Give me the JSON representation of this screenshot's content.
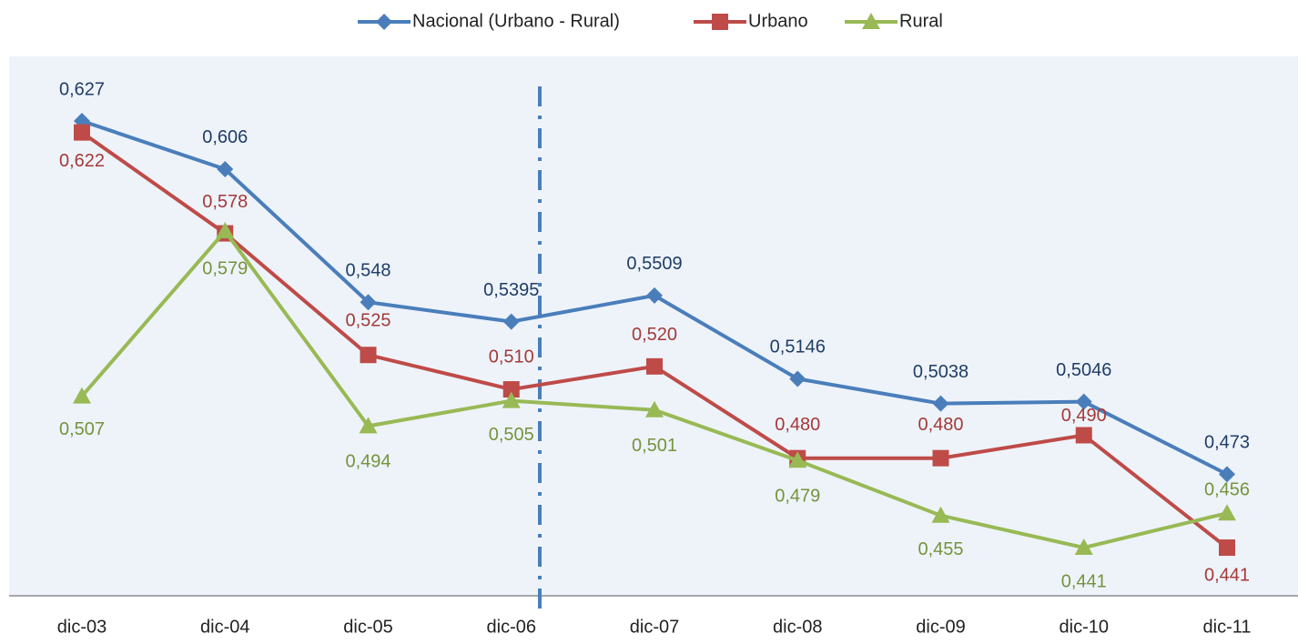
{
  "chart_data": {
    "type": "line",
    "categories": [
      "dic-03",
      "dic-04",
      "dic-05",
      "dic-06",
      "dic-07",
      "dic-08",
      "dic-09",
      "dic-10",
      "dic-11"
    ],
    "series": [
      {
        "name": "Nacional (Urbano - Rural)",
        "color": "#4a7ebb",
        "marker": "diamond",
        "values": [
          0.627,
          0.606,
          0.548,
          0.5395,
          0.5509,
          0.5146,
          0.5038,
          0.5046,
          0.473
        ],
        "value_labels": [
          "0,627",
          "0,606",
          "0,548",
          "0,5395",
          "0,5509",
          "0,5146",
          "0,5038",
          "0,5046",
          "0,473"
        ]
      },
      {
        "name": "Urbano",
        "color": "#be4b48",
        "marker": "square",
        "values": [
          0.622,
          0.578,
          0.525,
          0.51,
          0.52,
          0.48,
          0.48,
          0.49,
          0.441
        ],
        "value_labels": [
          "0,622",
          "0,578",
          "0,525",
          "0,510",
          "0,520",
          "0,480",
          "0,480",
          "0,490",
          "0,441"
        ]
      },
      {
        "name": "Rural",
        "color": "#98b954",
        "marker": "triangle",
        "values": [
          0.507,
          0.579,
          0.494,
          0.505,
          0.501,
          0.479,
          0.455,
          0.441,
          0.456
        ],
        "value_labels": [
          "0,507",
          "0,579",
          "0,494",
          "0,505",
          "0,501",
          "0,479",
          "0,455",
          "0,441",
          "0,456"
        ]
      }
    ],
    "ylim": [
      0.42,
      0.65
    ],
    "legend": "top"
  }
}
